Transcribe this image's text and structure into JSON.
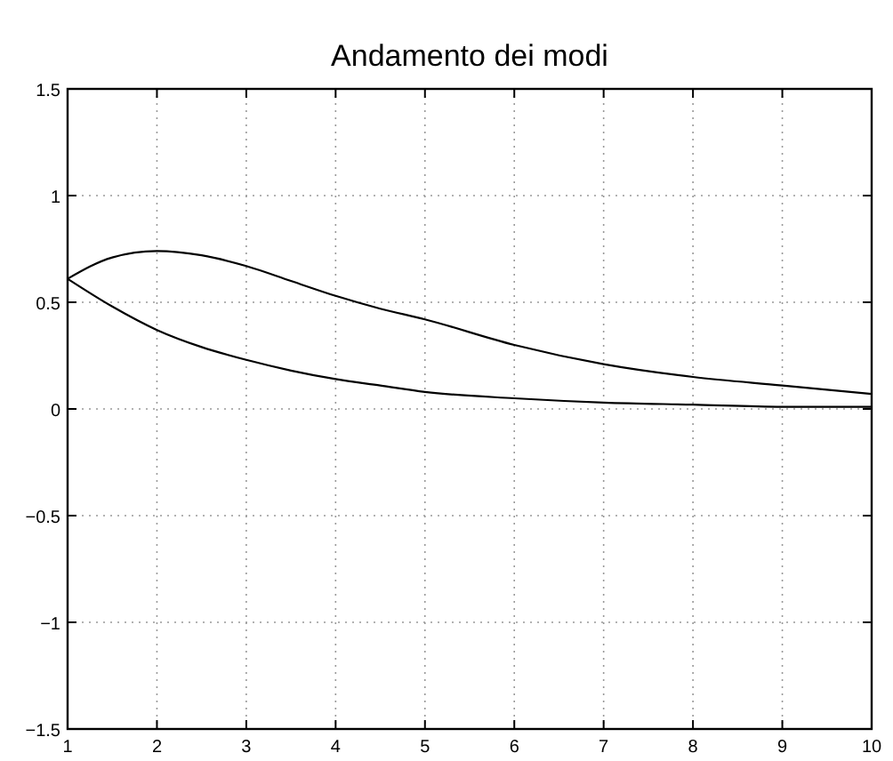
{
  "chart_data": {
    "type": "line",
    "title": "Andamento dei modi",
    "x": [
      1,
      1.5,
      2,
      2.5,
      3,
      3.5,
      4,
      4.5,
      5,
      6,
      7,
      8,
      9,
      10
    ],
    "series": [
      {
        "color": "#000000",
        "values": [
          0.61,
          0.71,
          0.74,
          0.72,
          0.67,
          0.6,
          0.53,
          0.47,
          0.42,
          0.3,
          0.21,
          0.15,
          0.11,
          0.07
        ]
      },
      {
        "color": "#000000",
        "values": [
          0.61,
          0.48,
          0.37,
          0.29,
          0.23,
          0.18,
          0.14,
          0.11,
          0.08,
          0.05,
          0.03,
          0.02,
          0.01,
          0.01
        ]
      }
    ],
    "xlim": [
      1,
      10
    ],
    "xticks": [
      1,
      2,
      3,
      4,
      5,
      6,
      7,
      8,
      9,
      10
    ],
    "ylim": [
      -1.5,
      1.5
    ],
    "yticks": [
      {
        "value": -1.5,
        "label": "−1.5"
      },
      {
        "value": -1,
        "label": "−1"
      },
      {
        "value": -0.5,
        "label": "−0.5"
      },
      0,
      0.5,
      1,
      1.5
    ],
    "grid": true,
    "line_style": "solid",
    "marker": "none"
  }
}
